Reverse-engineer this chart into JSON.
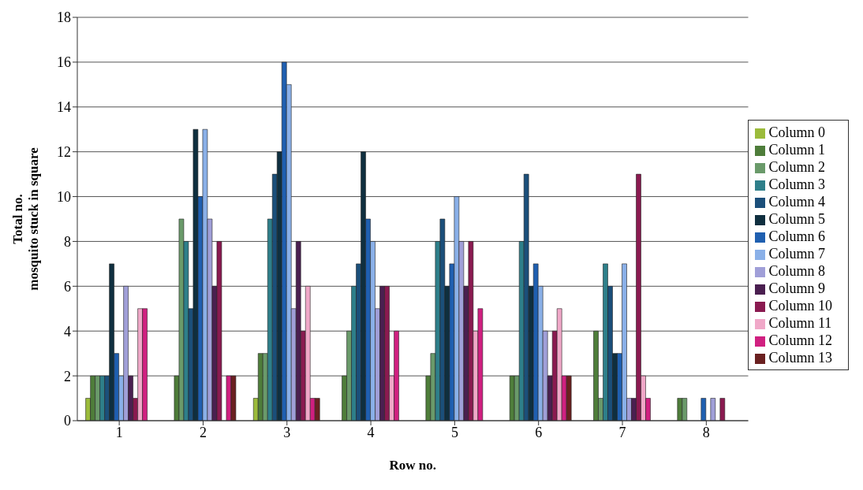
{
  "chart_data": {
    "type": "bar",
    "xlabel": "Row no.",
    "ylabel": "Total no.\nmosquito stuck in square",
    "categories": [
      "1",
      "2",
      "3",
      "4",
      "5",
      "6",
      "7",
      "8"
    ],
    "series": [
      {
        "name": "Column 0",
        "color": "#9bbb3b",
        "values": [
          1,
          0,
          1,
          0,
          0,
          0,
          0,
          0
        ]
      },
      {
        "name": "Column 1",
        "color": "#4e7d3a",
        "values": [
          2,
          2,
          3,
          2,
          2,
          2,
          4,
          1
        ]
      },
      {
        "name": "Column 2",
        "color": "#6a9a6a",
        "values": [
          2,
          9,
          3,
          4,
          3,
          2,
          1,
          1
        ]
      },
      {
        "name": "Column 3",
        "color": "#2e7f8a",
        "values": [
          2,
          8,
          9,
          6,
          8,
          8,
          7,
          0
        ]
      },
      {
        "name": "Column 4",
        "color": "#1b4f7a",
        "values": [
          2,
          5,
          11,
          7,
          9,
          11,
          6,
          0
        ]
      },
      {
        "name": "Column 5",
        "color": "#0f2f3f",
        "values": [
          7,
          13,
          12,
          12,
          6,
          6,
          3,
          0
        ]
      },
      {
        "name": "Column 6",
        "color": "#1f5fb0",
        "values": [
          3,
          10,
          16,
          9,
          7,
          7,
          3,
          1
        ]
      },
      {
        "name": "Column 7",
        "color": "#8ab0e8",
        "values": [
          2,
          13,
          15,
          8,
          10,
          6,
          7,
          0
        ]
      },
      {
        "name": "Column 8",
        "color": "#a09fd8",
        "values": [
          6,
          9,
          5,
          5,
          8,
          4,
          1,
          1
        ]
      },
      {
        "name": "Column 9",
        "color": "#4a1f50",
        "values": [
          2,
          6,
          8,
          6,
          6,
          2,
          1,
          0
        ]
      },
      {
        "name": "Column 10",
        "color": "#8a1a50",
        "values": [
          1,
          8,
          4,
          6,
          8,
          4,
          11,
          1
        ]
      },
      {
        "name": "Column 11",
        "color": "#f0a8c8",
        "values": [
          5,
          0,
          6,
          2,
          4,
          5,
          2,
          0
        ]
      },
      {
        "name": "Column 12",
        "color": "#d02080",
        "values": [
          5,
          2,
          1,
          4,
          5,
          2,
          1,
          0
        ]
      },
      {
        "name": "Column 13",
        "color": "#6a2020",
        "values": [
          0,
          2,
          1,
          0,
          0,
          2,
          0,
          0
        ]
      }
    ],
    "ylim": [
      0,
      18
    ],
    "yticks": [
      0,
      2,
      4,
      6,
      8,
      10,
      12,
      14,
      16,
      18
    ],
    "grid": "y",
    "legend": "right"
  }
}
